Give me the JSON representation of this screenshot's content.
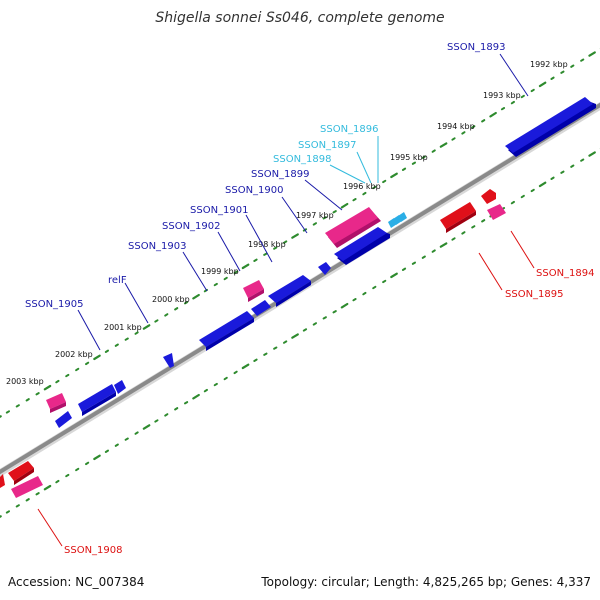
{
  "title": "Shigella sonnei Ss046, complete genome",
  "footer": {
    "accession": "Accession: NC_007384",
    "summary": "Topology: circular; Length: 4,825,265 bp; Genes: 4,337"
  },
  "colors": {
    "backbone": "#8a8a8a",
    "tick_dots": "#2e8b2e",
    "gene_forward": "#1a1adb",
    "gene_forward_light": "#2aaee6",
    "gene_reverse_red": "#e0101a",
    "gene_reverse_pink": "#e8288a",
    "label_forward": "#1a1aa8",
    "label_forward_light": "#33bbdd",
    "label_reverse": "#dd1111"
  },
  "scale_labels": [
    "1992 kbp",
    "1993 kbp",
    "1994 kbp",
    "1995 kbp",
    "1996 kbp",
    "1997 kbp",
    "1998 kbp",
    "1999 kbp",
    "2000 kbp",
    "2001 kbp",
    "2002 kbp",
    "2003 kbp"
  ],
  "gene_labels": [
    {
      "name": "SSON_1893",
      "strand": "forward"
    },
    {
      "name": "SSON_1896",
      "strand": "forward-light"
    },
    {
      "name": "SSON_1897",
      "strand": "forward-light"
    },
    {
      "name": "SSON_1898",
      "strand": "forward-light"
    },
    {
      "name": "SSON_1899",
      "strand": "forward"
    },
    {
      "name": "SSON_1900",
      "strand": "forward"
    },
    {
      "name": "SSON_1901",
      "strand": "forward"
    },
    {
      "name": "SSON_1902",
      "strand": "forward"
    },
    {
      "name": "SSON_1903",
      "strand": "forward"
    },
    {
      "name": "relF",
      "strand": "forward"
    },
    {
      "name": "SSON_1905",
      "strand": "forward"
    },
    {
      "name": "SSON_1894",
      "strand": "reverse"
    },
    {
      "name": "SSON_1895",
      "strand": "reverse"
    },
    {
      "name": "SSON_1908",
      "strand": "reverse"
    }
  ]
}
